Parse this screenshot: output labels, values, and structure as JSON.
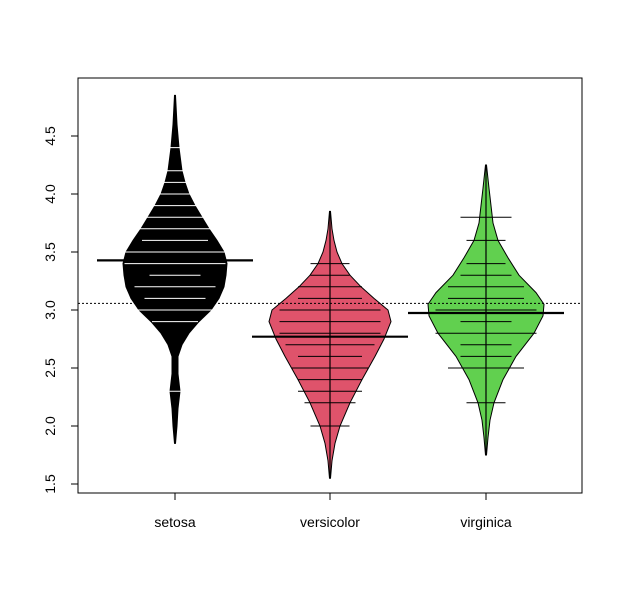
{
  "chart_data": {
    "type": "beanplot",
    "title": "",
    "xlabel": "",
    "ylabel": "",
    "ylim": [
      1.4,
      4.95
    ],
    "yticks": [
      1.5,
      2.0,
      2.5,
      3.0,
      3.5,
      4.0,
      4.5
    ],
    "ytick_labels": [
      "1.5",
      "2.0",
      "2.5",
      "3.0",
      "3.5",
      "4.0",
      "4.5"
    ],
    "categories": [
      "setosa",
      "versicolor",
      "virginica"
    ],
    "overall_mean": 3.057,
    "overall_mean_line": "dotted",
    "series": [
      {
        "name": "setosa",
        "color": "#000000",
        "line_color": "#ffffff",
        "mean": 3.428,
        "range": [
          1.85,
          4.85
        ],
        "density": [
          [
            1.85,
            0.5
          ],
          [
            2.0,
            2
          ],
          [
            2.15,
            3
          ],
          [
            2.3,
            5
          ],
          [
            2.45,
            3
          ],
          [
            2.6,
            3
          ],
          [
            2.7,
            7
          ],
          [
            2.8,
            14
          ],
          [
            2.9,
            24
          ],
          [
            3.0,
            36
          ],
          [
            3.1,
            44
          ],
          [
            3.2,
            49
          ],
          [
            3.3,
            51
          ],
          [
            3.4,
            52
          ],
          [
            3.5,
            49
          ],
          [
            3.6,
            42
          ],
          [
            3.7,
            34
          ],
          [
            3.8,
            27
          ],
          [
            3.9,
            20
          ],
          [
            4.0,
            14
          ],
          [
            4.1,
            10
          ],
          [
            4.2,
            7
          ],
          [
            4.4,
            4
          ],
          [
            4.6,
            2
          ],
          [
            4.85,
            0.5
          ]
        ],
        "beanlines": [
          [
            2.3,
            25
          ],
          [
            2.9,
            20
          ],
          [
            3.0,
            75
          ],
          [
            3.1,
            35
          ],
          [
            3.2,
            55
          ],
          [
            3.3,
            25
          ],
          [
            3.4,
            75
          ],
          [
            3.5,
            75
          ],
          [
            3.6,
            40
          ],
          [
            3.7,
            45
          ],
          [
            3.8,
            50
          ],
          [
            3.9,
            25
          ],
          [
            4.0,
            20
          ],
          [
            4.1,
            20
          ],
          [
            4.2,
            15
          ],
          [
            4.4,
            15
          ]
        ]
      },
      {
        "name": "versicolor",
        "color": "#df536b",
        "line_color": "#000000",
        "mean": 2.77,
        "range": [
          1.55,
          3.85
        ],
        "density": [
          [
            1.55,
            0.5
          ],
          [
            1.7,
            2
          ],
          [
            1.85,
            5
          ],
          [
            2.0,
            10
          ],
          [
            2.2,
            20
          ],
          [
            2.4,
            32
          ],
          [
            2.6,
            45
          ],
          [
            2.75,
            54
          ],
          [
            2.9,
            61
          ],
          [
            3.0,
            58
          ],
          [
            3.1,
            44
          ],
          [
            3.2,
            31
          ],
          [
            3.3,
            20
          ],
          [
            3.4,
            12
          ],
          [
            3.5,
            7
          ],
          [
            3.6,
            4
          ],
          [
            3.7,
            2
          ],
          [
            3.85,
            0.5
          ]
        ],
        "beanlines": [
          [
            2.0,
            13
          ],
          [
            2.2,
            25
          ],
          [
            2.3,
            38
          ],
          [
            2.4,
            38
          ],
          [
            2.5,
            50
          ],
          [
            2.6,
            38
          ],
          [
            2.7,
            63
          ],
          [
            2.8,
            75
          ],
          [
            2.9,
            75
          ],
          [
            3.0,
            75
          ],
          [
            3.1,
            38
          ],
          [
            3.2,
            38
          ],
          [
            3.3,
            13
          ],
          [
            3.4,
            13
          ]
        ]
      },
      {
        "name": "virginica",
        "color": "#61d04f",
        "line_color": "#000000",
        "mean": 2.974,
        "range": [
          1.75,
          4.25
        ],
        "density": [
          [
            1.75,
            0.5
          ],
          [
            1.9,
            2
          ],
          [
            2.05,
            4
          ],
          [
            2.2,
            8
          ],
          [
            2.4,
            17
          ],
          [
            2.6,
            30
          ],
          [
            2.8,
            48
          ],
          [
            2.95,
            57
          ],
          [
            3.05,
            58
          ],
          [
            3.15,
            50
          ],
          [
            3.3,
            33
          ],
          [
            3.45,
            22
          ],
          [
            3.6,
            12
          ],
          [
            3.75,
            7
          ],
          [
            3.9,
            5
          ],
          [
            4.05,
            3
          ],
          [
            4.25,
            0.5
          ]
        ],
        "beanlines": [
          [
            2.2,
            13
          ],
          [
            2.5,
            50
          ],
          [
            2.6,
            25
          ],
          [
            2.7,
            25
          ],
          [
            2.8,
            75
          ],
          [
            2.9,
            25
          ],
          [
            3.0,
            75
          ],
          [
            3.1,
            50
          ],
          [
            3.2,
            50
          ],
          [
            3.3,
            25
          ],
          [
            3.4,
            13
          ],
          [
            3.6,
            13
          ],
          [
            3.8,
            25
          ]
        ]
      }
    ]
  },
  "x_axis": {
    "labels": [
      "setosa",
      "versicolor",
      "virginica"
    ]
  }
}
